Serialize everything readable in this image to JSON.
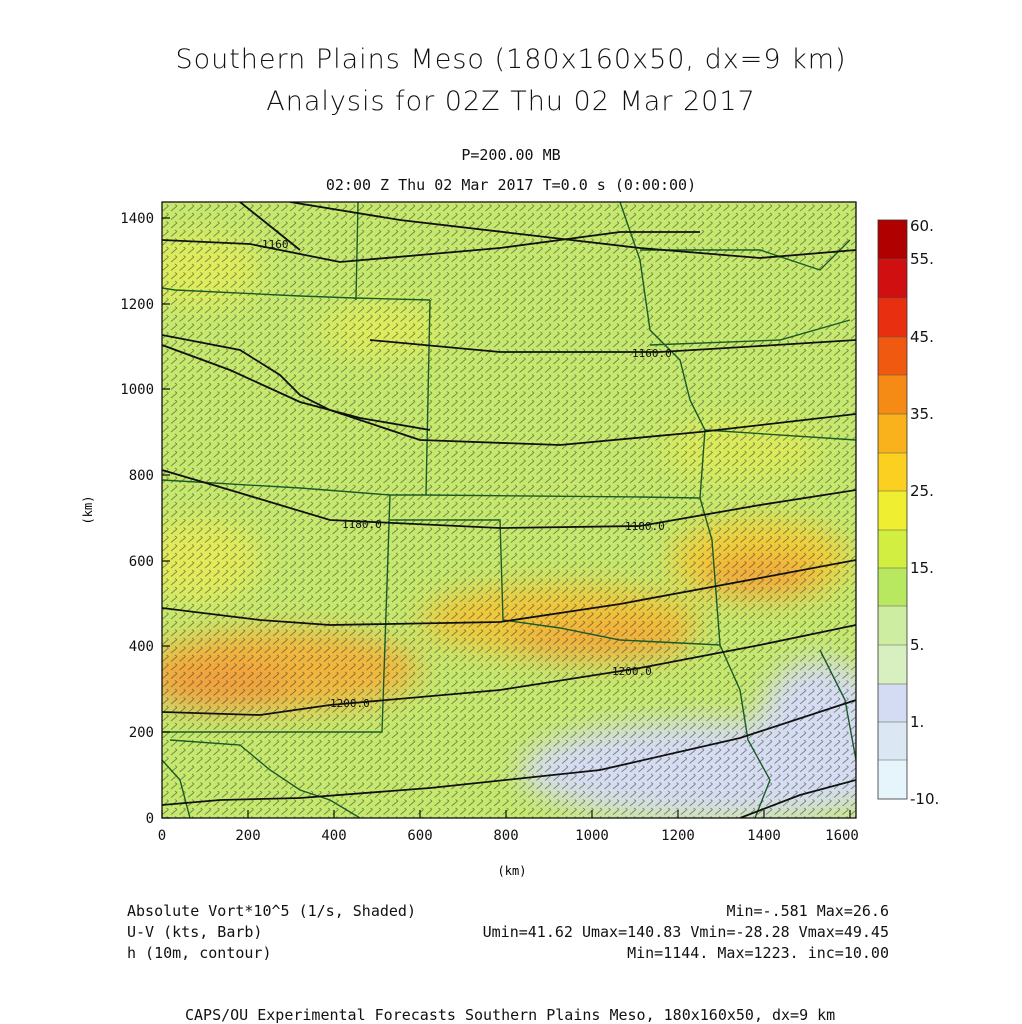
{
  "header": {
    "title_line1": "Southern Plains Meso (180x160x50, dx=9 km)",
    "title_line2": "Analysis for 02Z Thu 02 Mar 2017",
    "level": "P=200.00 MB",
    "time": "02:00 Z Thu 02 Mar 2017    T=0.0 s (0:00:00)"
  },
  "axes": {
    "x_label": "(km)",
    "y_label": "(km)",
    "x_ticks": [
      "0",
      "200",
      "400",
      "600",
      "800",
      "1000",
      "1200",
      "1400",
      "1600"
    ],
    "y_ticks": [
      "0",
      "200",
      "400",
      "600",
      "800",
      "1000",
      "1200",
      "1400"
    ]
  },
  "colorbar": {
    "labels": [
      "60.",
      "55.",
      "45.",
      "35.",
      "25.",
      "15.",
      "5.",
      "1.",
      "-10."
    ],
    "colors": [
      "#b00000",
      "#d01010",
      "#e83010",
      "#f05a10",
      "#f58a15",
      "#f9b21c",
      "#fbd020",
      "#f0ee30",
      "#d2ee40",
      "#b8e860",
      "#cdeea0",
      "#d4dcf4",
      "#dbe8f4",
      "#e6f4fb"
    ]
  },
  "contour_labels": [
    "1160",
    "1160.0",
    "1180.0",
    "1180.0",
    "1200.0",
    "1200.0",
    "1200.0"
  ],
  "legend": {
    "line1_left": "Absolute Vort*10^5 (1/s, Shaded)",
    "line1_right": "Min=-.581 Max=26.6",
    "line2_left": "U-V (kts, Barb)",
    "line2_right": "Umin=41.62 Umax=140.83 Vmin=-28.28 Vmax=49.45",
    "line3_left": "h (10m, contour)",
    "line3_right": "Min=1144. Max=1223. inc=10.00"
  },
  "footer": "CAPS/OU Experimental Forecasts  Southern Plains Meso, 180x160x50, dx=9 km",
  "colors": {
    "field_base": "#c4e86a",
    "high_vort": "#f5a030",
    "low_vort": "#d3dbf3",
    "contour": "#111111",
    "boundaries": "#1c5a28",
    "barbs": "#2a3a2a"
  }
}
